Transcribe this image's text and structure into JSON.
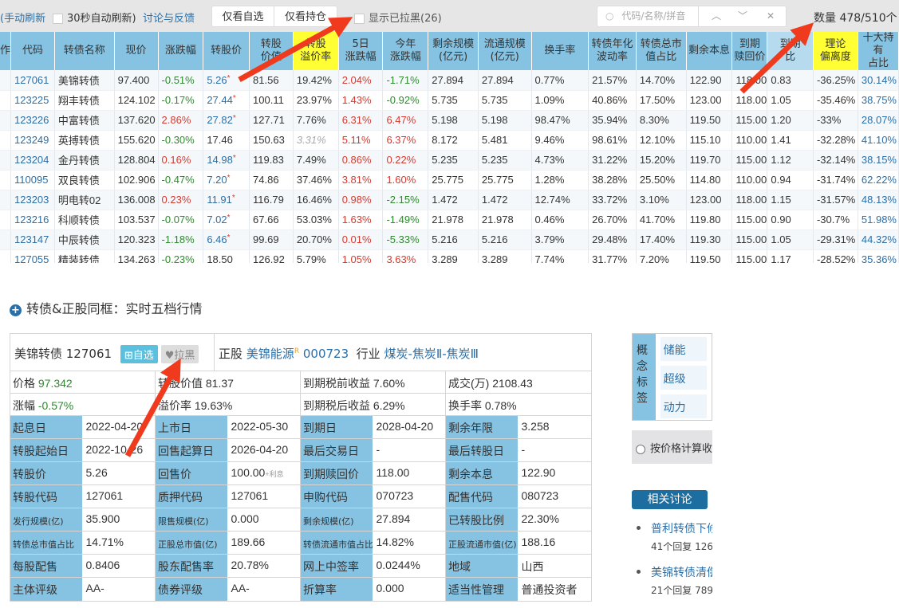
{
  "toolbar": {
    "manual_refresh": "(手动刷新",
    "auto_refresh": "30秒自动刷新)",
    "feedback": "讨论与反馈",
    "only_watch": "仅看自选",
    "only_hold": "仅看持仓",
    "show_blacklisted": "显示已拉黑(26)",
    "search_placeholder": "代码/名称/拼音",
    "count": "数量 478/510个"
  },
  "table": {
    "headers": [
      "作",
      "代码",
      "转债名称",
      "现价",
      "涨跌幅",
      "转股价",
      "转股\n价值",
      "转股\n溢价率",
      "5日\n涨跌幅",
      "今年\n涨跌幅",
      "剩余规模\n(亿元)",
      "流通规模\n(亿元)",
      "换手率",
      "转债年化\n波动率",
      "转债总市\n值占比",
      "剩余本息",
      "到期\n赎回价",
      "到期\n比",
      "理论\n偏离度",
      "十大持有\n占比"
    ],
    "rows": [
      [
        "127061",
        "美锦转债",
        "97.400",
        "-0.51%",
        "5.26",
        true,
        "81.56",
        "19.42%",
        "2.04%",
        "-1.71%",
        "27.894",
        "27.894",
        "0.77%",
        "21.57%",
        "14.70%",
        "122.90",
        "118.00",
        "0.83",
        "-36.25%",
        "30.14%"
      ],
      [
        "123225",
        "翔丰转债",
        "124.102",
        "-0.17%",
        "27.44",
        true,
        "100.11",
        "23.97%",
        "1.43%",
        "-0.92%",
        "5.735",
        "5.735",
        "1.09%",
        "40.86%",
        "17.50%",
        "123.00",
        "118.00",
        "1.05",
        "-35.46%",
        "38.75%"
      ],
      [
        "123226",
        "中富转债",
        "137.620",
        "2.86%",
        "27.82",
        true,
        "127.71",
        "7.76%",
        "6.31%",
        "6.47%",
        "5.198",
        "5.198",
        "98.47%",
        "35.94%",
        "8.30%",
        "119.50",
        "115.00",
        "1.20",
        "-33%",
        "28.07%"
      ],
      [
        "123249",
        "英搏转债",
        "155.620",
        "-0.30%",
        "17.46",
        false,
        "150.63",
        "3.31%",
        "5.11%",
        "6.37%",
        "8.172",
        "5.481",
        "9.46%",
        "98.61%",
        "12.10%",
        "115.10",
        "110.00",
        "1.41",
        "-32.28%",
        "41.10%"
      ],
      [
        "123204",
        "金丹转债",
        "128.804",
        "0.16%",
        "14.98",
        true,
        "119.83",
        "7.49%",
        "0.86%",
        "0.22%",
        "5.235",
        "5.235",
        "4.73%",
        "31.22%",
        "15.20%",
        "119.70",
        "115.00",
        "1.12",
        "-32.14%",
        "38.15%"
      ],
      [
        "110095",
        "双良转债",
        "102.906",
        "-0.47%",
        "7.20",
        true,
        "74.86",
        "37.46%",
        "3.81%",
        "1.60%",
        "25.775",
        "25.775",
        "1.28%",
        "38.28%",
        "25.50%",
        "114.80",
        "110.00",
        "0.94",
        "-31.74%",
        "62.22%"
      ],
      [
        "123203",
        "明电转02",
        "136.008",
        "0.23%",
        "11.91",
        true,
        "116.79",
        "16.46%",
        "0.98%",
        "-2.15%",
        "1.472",
        "1.472",
        "12.74%",
        "33.72%",
        "3.10%",
        "123.00",
        "118.00",
        "1.15",
        "-31.57%",
        "48.13%"
      ],
      [
        "123216",
        "科顺转债",
        "103.537",
        "-0.07%",
        "7.02",
        true,
        "67.66",
        "53.03%",
        "1.63%",
        "-1.49%",
        "21.978",
        "21.978",
        "0.46%",
        "26.70%",
        "41.70%",
        "119.80",
        "115.00",
        "0.90",
        "-30.7%",
        "51.98%"
      ],
      [
        "123147",
        "中辰转债",
        "120.323",
        "-1.18%",
        "6.46",
        true,
        "99.69",
        "20.70%",
        "0.01%",
        "-5.33%",
        "5.216",
        "5.216",
        "3.79%",
        "29.48%",
        "17.40%",
        "119.30",
        "115.00",
        "1.05",
        "-29.31%",
        "44.32%"
      ],
      [
        "127055",
        "精装转债",
        "134.263",
        "-0.23%",
        "18.50",
        false,
        "126.92",
        "5.79%",
        "1.05%",
        "3.63%",
        "3.289",
        "3.289",
        "7.74%",
        "31.77%",
        "7.20%",
        "119.50",
        "115.00",
        "1.17",
        "-28.52%",
        "35.36%"
      ]
    ]
  },
  "section_title": "转债&正股同框：实时五档行情",
  "detail": {
    "bond_name": "美锦转债 127061",
    "watch_btn": "自选",
    "blacklist_btn": "拉黑",
    "stock_label": "正股",
    "stock_name": "美锦能源",
    "stock_sup": "R",
    "stock_code": "000723",
    "industry_label": "行业",
    "industry": "煤炭-焦炭Ⅱ-焦炭Ⅲ",
    "price_label": "价格",
    "price": "97.342",
    "change_label": "涨幅",
    "change": "-0.57%",
    "quick": [
      "转股价值 81.37",
      "到期税前收益 7.60%",
      "成交(万) 2108.43",
      "溢价率 19.63%",
      "到期税后收益 6.29%",
      "换手率 0.78%"
    ],
    "rows": [
      [
        [
          "起息日",
          "2022-04-20"
        ],
        [
          "上市日",
          "2022-05-30"
        ],
        [
          "到期日",
          "2028-04-20"
        ],
        [
          "剩余年限",
          "3.258"
        ]
      ],
      [
        [
          "转股起始日",
          "2022-10-26"
        ],
        [
          "回售起算日",
          "2026-04-20"
        ],
        [
          "最后交易日",
          "-"
        ],
        [
          "最后转股日",
          "-"
        ]
      ],
      [
        [
          "转股价",
          "5.26"
        ],
        [
          "回售价",
          "100.00"
        ],
        [
          "到期赎回价",
          "118.00"
        ],
        [
          "剩余本息",
          "122.90"
        ]
      ],
      [
        [
          "转股代码",
          "127061"
        ],
        [
          "质押代码",
          "127061"
        ],
        [
          "申购代码",
          "070723"
        ],
        [
          "配售代码",
          "080723"
        ]
      ],
      [
        [
          "发行规模(亿)",
          "35.900"
        ],
        [
          "限售规模(亿)",
          "0.000"
        ],
        [
          "剩余规模(亿)",
          "27.894"
        ],
        [
          "已转股比例",
          "22.30%"
        ]
      ],
      [
        [
          "转债总市值占比",
          "14.71%"
        ],
        [
          "正股总市值(亿)",
          "189.66"
        ],
        [
          "转债流通市值占比",
          "14.82%"
        ],
        [
          "正股流通市值(亿)",
          "188.16"
        ]
      ],
      [
        [
          "每股配售",
          "0.8406"
        ],
        [
          "股东配售率",
          "20.78%"
        ],
        [
          "网上中签率",
          "0.0244%"
        ],
        [
          "地域",
          "山西"
        ]
      ],
      [
        [
          "主体评级",
          "AA-"
        ],
        [
          "债券评级",
          "AA-"
        ],
        [
          "折算率",
          "0.000"
        ],
        [
          "适当性管理",
          "普通投资者"
        ]
      ]
    ],
    "putback_suffix": "+利息"
  },
  "right": {
    "concept_label": "概念标签",
    "tags": [
      "储能",
      "超级",
      "动力"
    ],
    "radio_label": "按价格计算收",
    "discuss_btn": "相关讨论",
    "discussions": [
      {
        "title": "普利转债下修",
        "meta": "41个回复 126"
      },
      {
        "title": "美锦转债清偿",
        "meta": "21个回复 789"
      }
    ]
  },
  "colors": {
    "header_blue": "#86c3e3",
    "highlight_yellow": "#ffff33",
    "up_red": "#d63a30",
    "down_green": "#2d8a2d",
    "link_blue": "#2a6fa8",
    "arrow_red": "#f03a1e"
  }
}
